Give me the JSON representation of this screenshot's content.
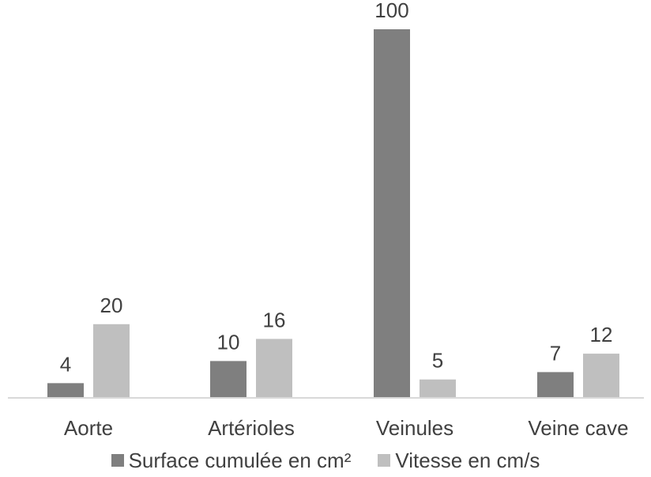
{
  "chart_data": {
    "type": "bar",
    "categories": [
      "Aorte",
      "Artérioles",
      "Veinules",
      "Veine cave"
    ],
    "series": [
      {
        "name": "Surface cumulée en cm²",
        "values": [
          4,
          10,
          100,
          7
        ],
        "value_labels": [
          "4",
          "10",
          "100",
          "7"
        ],
        "color": "#7f7f7f"
      },
      {
        "name": "Vitesse en cm/s",
        "values": [
          20,
          16,
          5,
          12
        ],
        "value_labels": [
          "20",
          "16",
          "5",
          "12"
        ],
        "color": "#bfbfbf"
      }
    ],
    "title": "",
    "xlabel": "",
    "ylabel": "",
    "legend": "bottom",
    "grid": false,
    "axis_color": "#d9d9d9",
    "text_color": "#404040"
  }
}
